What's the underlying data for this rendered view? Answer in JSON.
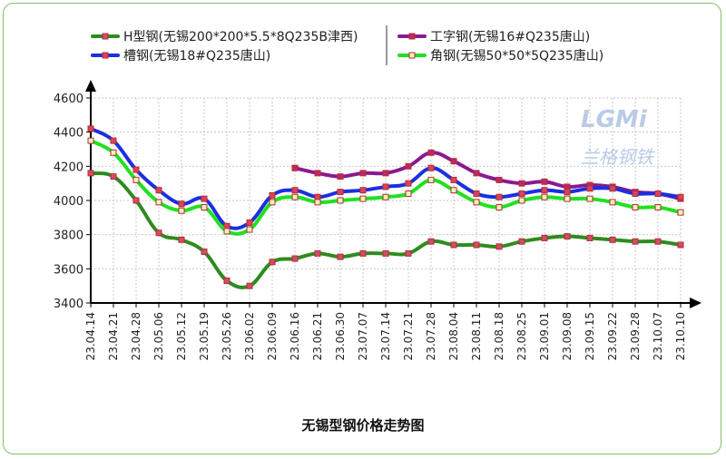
{
  "chart_data": {
    "type": "line",
    "title": "无锡型钢价格走势图",
    "xlabel": "",
    "ylabel": "",
    "ylim": [
      3400,
      4600
    ],
    "yticks": [
      3400,
      3600,
      3800,
      4000,
      4200,
      4400,
      4600
    ],
    "grid": true,
    "legend_position": "top",
    "x": [
      "23.04.14",
      "23.04.21",
      "23.04.28",
      "23.05.06",
      "23.05.12",
      "23.05.19",
      "23.05.26",
      "23.06.02",
      "23.06.09",
      "23.06.16",
      "23.06.21",
      "23.06.30",
      "23.07.07",
      "23.07.14",
      "23.07.21",
      "23.07.28",
      "23.08.04",
      "23.08.11",
      "23.08.18",
      "23.08.25",
      "23.09.01",
      "23.09.08",
      "23.09.15",
      "23.09.22",
      "23.09.28",
      "23.10.07",
      "23.10.10"
    ],
    "series": [
      {
        "name": "H型钢(无锡200*200*5.5*8Q235B津西)",
        "color": "#2e8b1f",
        "marker": "#d24b6a",
        "values": [
          4160,
          4140,
          4000,
          3810,
          3770,
          3700,
          3530,
          3500,
          3640,
          3660,
          3690,
          3670,
          3690,
          3690,
          3690,
          3760,
          3740,
          3740,
          3730,
          3760,
          3780,
          3790,
          3780,
          3770,
          3760,
          3760,
          3740
        ]
      },
      {
        "name": "工字钢(无锡16#Q235唐山)",
        "color": "#8a1a8f",
        "marker": "#c0266b",
        "values": [
          null,
          null,
          null,
          null,
          null,
          null,
          null,
          null,
          null,
          4190,
          4160,
          4140,
          4160,
          4160,
          4200,
          4280,
          4230,
          4160,
          4120,
          4100,
          4110,
          4080,
          4090,
          4080,
          4050,
          4040,
          4010
        ]
      },
      {
        "name": "槽钢(无锡18#Q235唐山)",
        "color": "#1c2fe0",
        "marker": "#e0405a",
        "values": [
          4420,
          4350,
          4180,
          4060,
          3980,
          4010,
          3850,
          3870,
          4030,
          4060,
          4020,
          4050,
          4060,
          4080,
          4100,
          4190,
          4120,
          4040,
          4020,
          4040,
          4060,
          4050,
          4070,
          4070,
          4040,
          4040,
          4020
        ]
      },
      {
        "name": "角钢(无锡50*50*5Q235唐山)",
        "color": "#22e020",
        "marker": "#f0f0c0",
        "values": [
          4350,
          4280,
          4120,
          3990,
          3940,
          3960,
          3820,
          3830,
          3990,
          4020,
          3990,
          4000,
          4010,
          4020,
          4040,
          4120,
          4060,
          3990,
          3960,
          4000,
          4020,
          4010,
          4010,
          3990,
          3960,
          3960,
          3930
        ]
      }
    ],
    "watermark": {
      "logo": "LGMi",
      "sub": "兰格钢铁"
    }
  }
}
